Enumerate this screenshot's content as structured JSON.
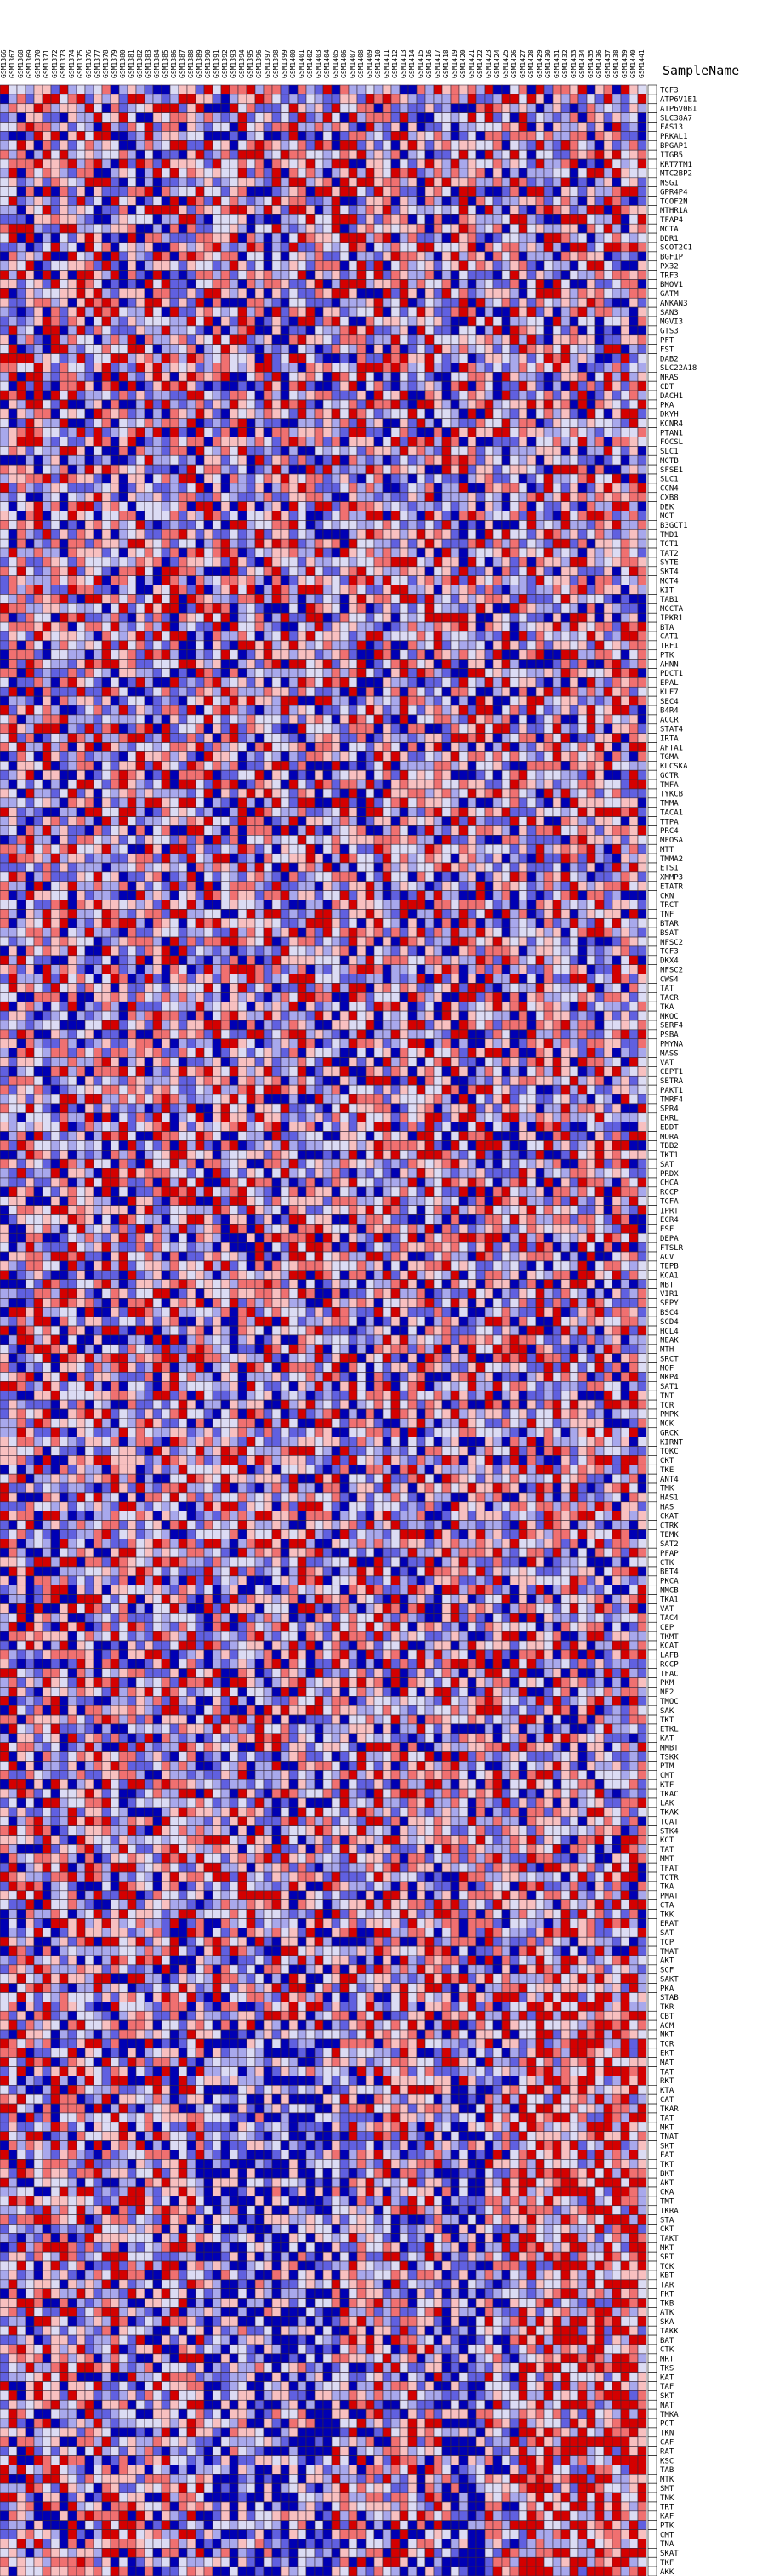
{
  "figure": {
    "legend_header": "SampleName"
  },
  "colors": {
    "high": "#d40000",
    "mid_high": "#f07070",
    "low_high": "#f8c0c0",
    "neutral": "#dcdcf4",
    "low_low": "#a8a8ec",
    "mid_low": "#6060e0",
    "low": "#0000b4",
    "grid": "#3a2a3a"
  },
  "chart_data": {
    "type": "heatmap",
    "title": "",
    "xlabel": "",
    "ylabel": "",
    "x_labels": [
      "GSM1366",
      "GSM1367",
      "GSM1368",
      "GSM1369",
      "GSM1370",
      "GSM1371",
      "GSM1372",
      "GSM1373",
      "GSM1374",
      "GSM1375",
      "GSM1376",
      "GSM1377",
      "GSM1378",
      "GSM1379",
      "GSM1380",
      "GSM1381",
      "GSM1382",
      "GSM1383",
      "GSM1384",
      "GSM1385",
      "GSM1386",
      "GSM1387",
      "GSM1388",
      "GSM1389",
      "GSM1390",
      "GSM1391",
      "GSM1392",
      "GSM1393",
      "GSM1394",
      "GSM1395",
      "GSM1396",
      "GSM1397",
      "GSM1398",
      "GSM1399",
      "GSM1400",
      "GSM1401",
      "GSM1402",
      "GSM1403",
      "GSM1404",
      "GSM1405",
      "GSM1406",
      "GSM1407",
      "GSM1408",
      "GSM1409",
      "GSM1410",
      "GSM1411",
      "GSM1412",
      "GSM1413",
      "GSM1414",
      "GSM1415",
      "GSM1416",
      "GSM1417",
      "GSM1418",
      "GSM1419",
      "GSM1420",
      "GSM1421",
      "GSM1422",
      "GSM1423",
      "GSM1424",
      "GSM1425",
      "GSM1426",
      "GSM1427",
      "GSM1428",
      "GSM1429",
      "GSM1430",
      "GSM1431",
      "GSM1432",
      "GSM1433",
      "GSM1434",
      "GSM1435",
      "GSM1436",
      "GSM1437",
      "GSM1438",
      "GSM1439",
      "GSM1440",
      "GSM1441"
    ],
    "y_labels": [
      "TCF3",
      "ATP6V1E1",
      "ATP6V0B1",
      "SLC38A7",
      "FAS13",
      "PRKAL1",
      "BPGAP1",
      "ITGB5",
      "KRT7TM1",
      "MTC2BP2",
      "NSG1",
      "GPR4P4",
      "TCOF2N",
      "MTHR1A",
      "TFAP4",
      "MCTA",
      "DDR1",
      "SCOT2C1",
      "BGF1P",
      "PX32",
      "TRF3",
      "BMOV1",
      "GATM",
      "ANKAN3",
      "SAN3",
      "MGVI3",
      "GTS3",
      "PFT",
      "FST",
      "DAB2",
      "SLC22A18",
      "NRAS",
      "CDT",
      "DACH1",
      "PKA",
      "DKYH",
      "KCNR4",
      "PTAN1",
      "FOCSL",
      "SLC1",
      "MCTB",
      "SFSE1",
      "SLC1",
      "CCN4",
      "CXB8",
      "DEK",
      "MCT",
      "B3GCT1",
      "TMD1",
      "TCT1",
      "TAT2",
      "SYTE",
      "SKT4",
      "MCT4",
      "KIT",
      "TAB1",
      "MCCTA",
      "IPKR1",
      "BTA",
      "CAT1",
      "TRF1",
      "PTK",
      "AHNN",
      "PDCT1",
      "EPAL",
      "KLF7",
      "SEC4",
      "B4R4",
      "ACCR",
      "STAT4",
      "IRTA",
      "AFTA1",
      "TGMA",
      "KLCSKA",
      "GCTR",
      "TMFA",
      "TYKCB",
      "TMMA",
      "TACA1",
      "TTPA",
      "PRC4",
      "MFOSA",
      "MTT",
      "TMMA2",
      "ETS1",
      "XMMP3",
      "ETATR",
      "CKN",
      "TRCT",
      "TNF",
      "BTAR",
      "BSAT",
      "NFSC2",
      "TCF3",
      "DKX4",
      "NFSC2",
      "CWS4",
      "TAT",
      "TACR",
      "TKA",
      "MKOC",
      "SERF4",
      "PSBA",
      "PMYNA",
      "MASS",
      "VAT",
      "CEPT1",
      "SETRA",
      "PAKT1",
      "TMRF4",
      "SPR4",
      "EKRL",
      "EDDT",
      "MORA",
      "TBB2",
      "TKT1",
      "SAT",
      "PRDX",
      "CHCA",
      "RCCP",
      "TCFA",
      "IPRT",
      "ECR4",
      "ESF",
      "DEPA",
      "FTSLR",
      "ACV",
      "TEPB",
      "KCA1",
      "NBT",
      "VIR1",
      "SEPY",
      "BSC4",
      "SCD4",
      "HCL4",
      "NEAK",
      "MTH",
      "SRCT",
      "MOF",
      "MKP4",
      "SAT1",
      "TNT",
      "TCR",
      "PMPK",
      "NCK",
      "GRCK",
      "KIRNT",
      "TOKC",
      "CKT",
      "TKE",
      "ANT4",
      "TMK",
      "HAS1",
      "HAS",
      "CKAT",
      "CTRK",
      "TEMK",
      "SAT2",
      "PFAP",
      "CTK",
      "BET4",
      "PKCA",
      "NMCB",
      "TKA1",
      "VAT",
      "TAC4",
      "CEP",
      "TKMT",
      "KCAT",
      "LAFB",
      "RCCP",
      "TFAC",
      "PKM",
      "NF2",
      "TMOC",
      "SAK",
      "TKT",
      "ETKL",
      "KAT",
      "MMBT",
      "TSKK",
      "PTM",
      "CMT",
      "KTF",
      "TKAC",
      "LAK",
      "TKAK",
      "TCAT",
      "STK4",
      "KCT",
      "TAT",
      "MMT",
      "TFAT",
      "TCTR",
      "TKA",
      "PMAT",
      "CTA",
      "TKK",
      "ERAT",
      "SAT",
      "TCP",
      "TMAT",
      "AKT",
      "SCF",
      "SAKT",
      "PKA",
      "STAB",
      "TKR",
      "CBT",
      "ACM",
      "NKT",
      "TCR",
      "EKT",
      "MAT",
      "TAT",
      "RKT",
      "KTA",
      "CAT",
      "TKAR",
      "TAT",
      "MKT",
      "TNAT",
      "SKT",
      "FAT",
      "TKT",
      "BKT",
      "AKT",
      "CKA",
      "TMT",
      "TKRA",
      "STA",
      "CKT",
      "TAKT",
      "MKT",
      "SRT",
      "TCK",
      "KBT",
      "TAR",
      "FKT",
      "TKB",
      "ATK",
      "SKA",
      "TAKK",
      "BAT",
      "CTK",
      "MRT",
      "TKS",
      "KAT",
      "TAF",
      "SKT",
      "NAT",
      "TMKA",
      "PCT",
      "TKN",
      "CAF",
      "RAT",
      "KSC",
      "TAB",
      "MTK",
      "SMT",
      "TNK",
      "TRT",
      "KAF",
      "PTK",
      "CMT",
      "TNA",
      "SKAT",
      "TKF",
      "AKK"
    ],
    "values_source": "per-cell expression z-scores rendered as a diverging red/blue heatmap",
    "value_range": [
      -2,
      2
    ]
  }
}
